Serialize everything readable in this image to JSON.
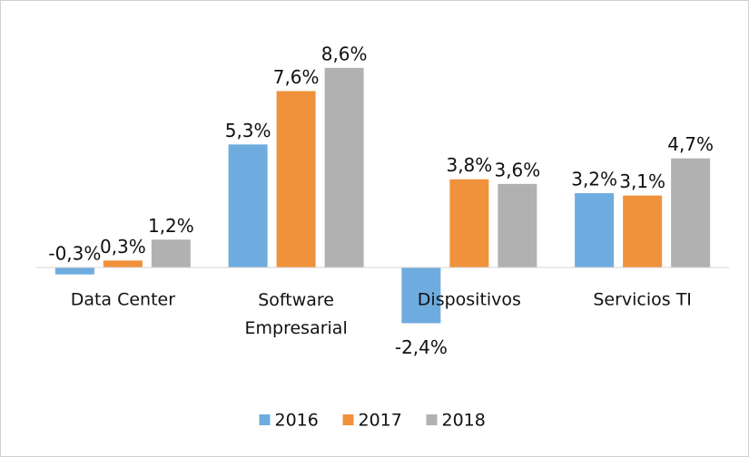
{
  "chart_data": {
    "type": "bar",
    "categories": [
      "Data Center",
      "Software Empresarial",
      "Dispositivos",
      "Servicios TI"
    ],
    "series": [
      {
        "name": "2016",
        "color": "#6eacdf",
        "values": [
          -0.3,
          5.3,
          -2.4,
          3.2
        ],
        "value_labels": [
          "-0,3%",
          "5,3%",
          "-2,4%",
          "3,2%"
        ]
      },
      {
        "name": "2017",
        "color": "#f0913b",
        "values": [
          0.3,
          7.6,
          3.8,
          3.1
        ],
        "value_labels": [
          "0,3%",
          "7,6%",
          "3,8%",
          "3,1%"
        ]
      },
      {
        "name": "2018",
        "color": "#b1b1b1",
        "values": [
          1.2,
          8.6,
          3.6,
          4.7
        ],
        "value_labels": [
          "1,2%",
          "8,6%",
          "3,6%",
          "4,7%"
        ]
      }
    ],
    "legend": "bottom"
  }
}
